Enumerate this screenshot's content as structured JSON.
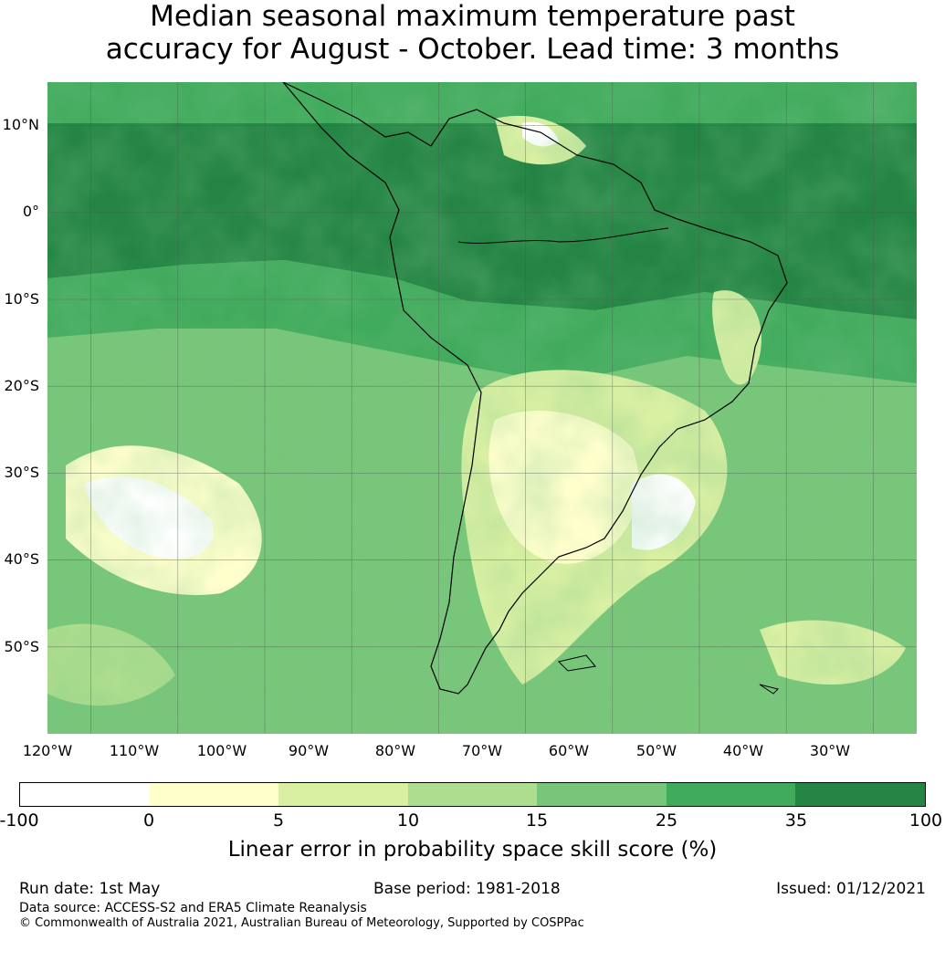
{
  "title": {
    "line1": "Median seasonal maximum temperature past",
    "line2": "accuracy for August - October. Lead time: 3 months"
  },
  "map": {
    "latitude_labels": [
      "10°N",
      "0°",
      "10°S",
      "20°S",
      "30°S",
      "40°S",
      "50°S"
    ],
    "longitude_labels": [
      "120°W",
      "110°W",
      "100°W",
      "90°W",
      "80°W",
      "70°W",
      "60°W",
      "50°W",
      "40°W",
      "30°W"
    ],
    "extent": {
      "lon_min": -125,
      "lon_max": -25,
      "lat_min": -60,
      "lat_max": 15
    },
    "ocean_color": "#5cb665",
    "coastline_color": "#000000"
  },
  "colorbar": {
    "tick_labels": [
      "-100",
      "0",
      "5",
      "10",
      "15",
      "25",
      "35",
      "100"
    ],
    "colors": [
      "#ffffff",
      "#ffffcc",
      "#d9f0a3",
      "#addd8e",
      "#78c679",
      "#41ab5d",
      "#238443"
    ],
    "label": "Linear error in probability space skill score (%)"
  },
  "footer": {
    "run_date": "Run date: 1st May",
    "base_period": "Base period: 1981-2018",
    "issued": "Issued: 01/12/2021",
    "data_source": "Data source: ACCESS-S2 and ERA5 Climate Reanalysis",
    "copyright": "© Commonwealth of Australia 2021, Australian Bureau of Meteorology, Supported by COSPPac"
  }
}
